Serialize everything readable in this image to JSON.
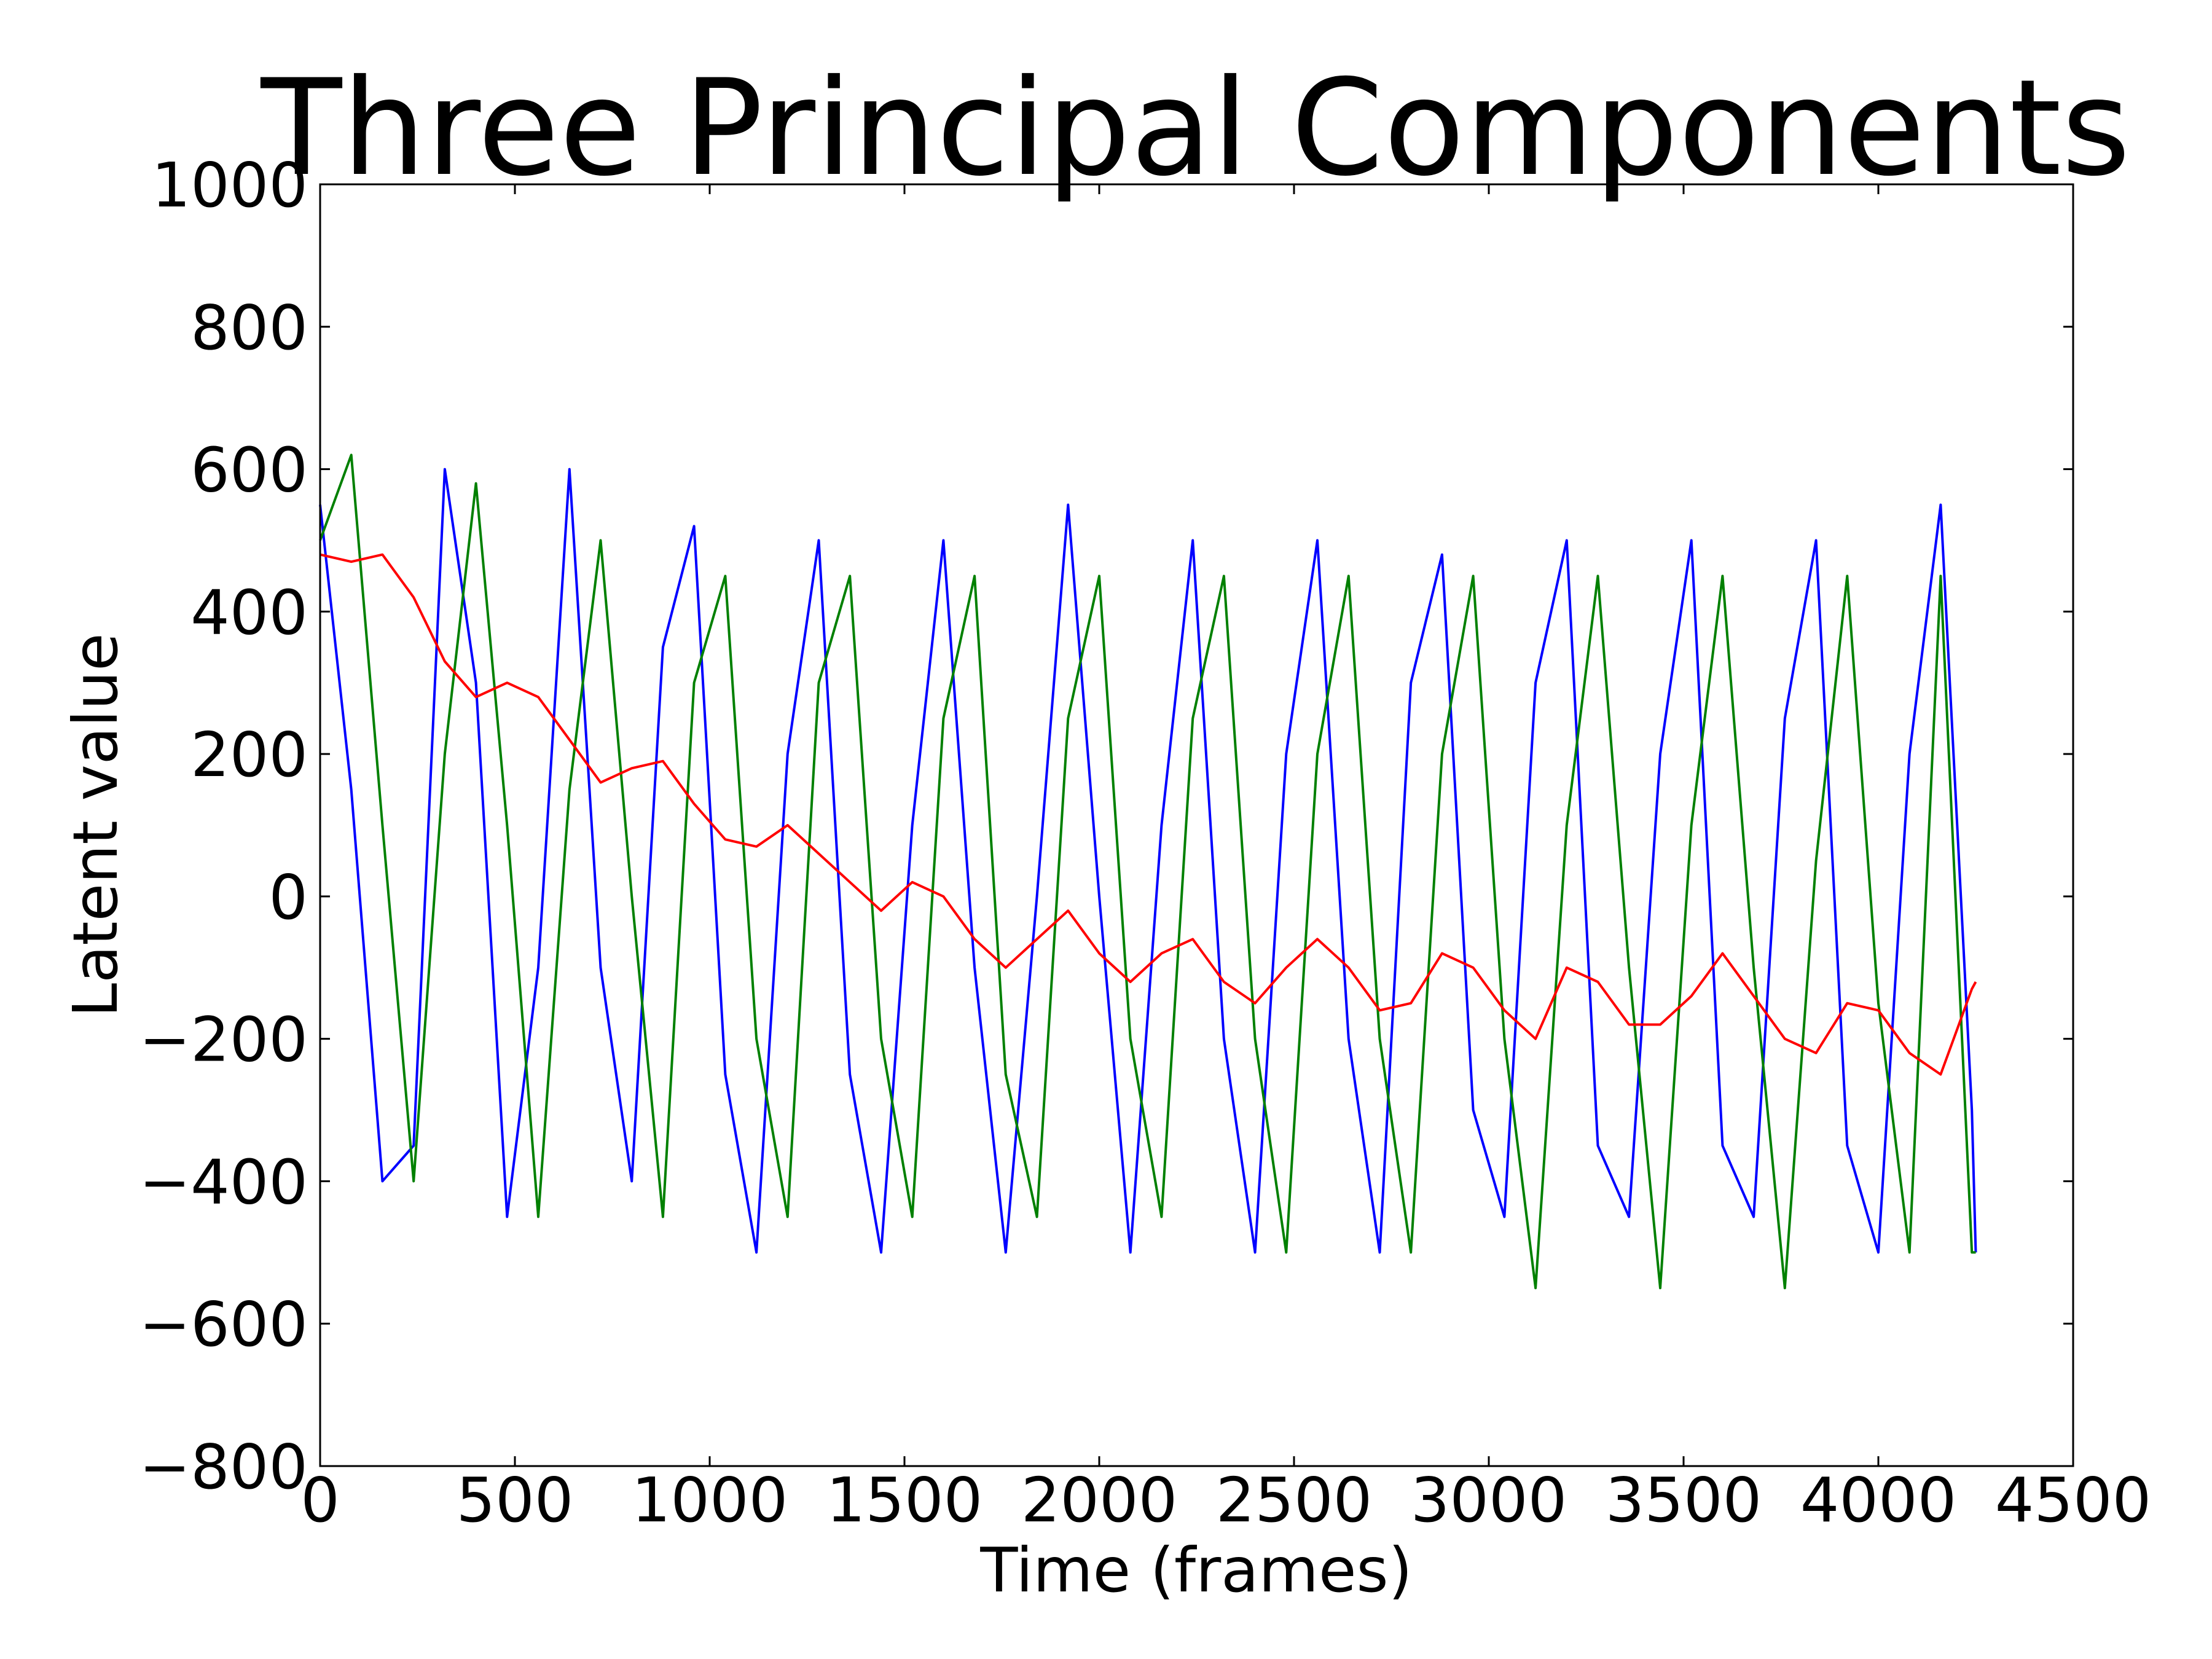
{
  "chart_data": {
    "type": "line",
    "title": "Three Principal Components",
    "xlabel": "Time (frames)",
    "ylabel": "Latent value",
    "xlim": [
      0,
      4500
    ],
    "ylim": [
      -800,
      1000
    ],
    "xticks": [
      0,
      500,
      1000,
      1500,
      2000,
      2500,
      3000,
      3500,
      4000,
      4500
    ],
    "yticks": [
      -800,
      -600,
      -400,
      -200,
      0,
      200,
      400,
      600,
      800,
      1000
    ],
    "xtick_labels": [
      "0",
      "500",
      "1000",
      "1500",
      "2000",
      "2500",
      "3000",
      "3500",
      "4000",
      "4500"
    ],
    "ytick_labels": [
      "−800",
      "−600",
      "−400",
      "−200",
      "0",
      "200",
      "400",
      "600",
      "800",
      "1000"
    ],
    "grid": false,
    "series": [
      {
        "color": "#0000ff",
        "x": [
          0,
          80,
          160,
          240,
          320,
          400,
          480,
          560,
          640,
          720,
          800,
          880,
          960,
          1040,
          1120,
          1200,
          1280,
          1360,
          1440,
          1520,
          1600,
          1680,
          1760,
          1840,
          1920,
          2000,
          2080,
          2160,
          2240,
          2320,
          2400,
          2480,
          2560,
          2640,
          2720,
          2800,
          2880,
          2960,
          3040,
          3120,
          3200,
          3280,
          3360,
          3440,
          3520,
          3600,
          3680,
          3760,
          3840,
          3920,
          4000,
          4080,
          4160,
          4240,
          4250
        ],
        "y": [
          550,
          150,
          -400,
          -350,
          600,
          300,
          -450,
          -100,
          600,
          -100,
          -400,
          350,
          520,
          -250,
          -500,
          200,
          500,
          -250,
          -500,
          100,
          500,
          -100,
          -500,
          0,
          550,
          0,
          -500,
          100,
          500,
          -200,
          -500,
          200,
          500,
          -200,
          -500,
          300,
          480,
          -300,
          -450,
          300,
          500,
          -350,
          -450,
          200,
          500,
          -350,
          -450,
          250,
          500,
          -350,
          -500,
          200,
          550,
          -300,
          -500
        ]
      },
      {
        "color": "#008000",
        "x": [
          0,
          80,
          160,
          240,
          320,
          400,
          480,
          560,
          640,
          720,
          800,
          880,
          960,
          1040,
          1120,
          1200,
          1280,
          1360,
          1440,
          1520,
          1600,
          1680,
          1760,
          1840,
          1920,
          2000,
          2080,
          2160,
          2240,
          2320,
          2400,
          2480,
          2560,
          2640,
          2720,
          2800,
          2880,
          2960,
          3040,
          3120,
          3200,
          3280,
          3360,
          3440,
          3520,
          3600,
          3680,
          3760,
          3840,
          3920,
          4000,
          4080,
          4160,
          4240,
          4250
        ],
        "y": [
          500,
          620,
          100,
          -400,
          200,
          580,
          100,
          -450,
          150,
          500,
          0,
          -450,
          300,
          450,
          -200,
          -450,
          300,
          450,
          -200,
          -450,
          250,
          450,
          -250,
          -450,
          250,
          450,
          -200,
          -450,
          250,
          450,
          -200,
          -500,
          200,
          450,
          -200,
          -500,
          200,
          450,
          -200,
          -550,
          100,
          450,
          -100,
          -550,
          100,
          450,
          -100,
          -550,
          50,
          450,
          -150,
          -500,
          450,
          -500,
          -500
        ]
      },
      {
        "color": "#ff0000",
        "x": [
          0,
          80,
          160,
          240,
          320,
          400,
          480,
          560,
          640,
          720,
          800,
          880,
          960,
          1040,
          1120,
          1200,
          1280,
          1360,
          1440,
          1520,
          1600,
          1680,
          1760,
          1840,
          1920,
          2000,
          2080,
          2160,
          2240,
          2320,
          2400,
          2480,
          2560,
          2640,
          2720,
          2800,
          2880,
          2960,
          3040,
          3120,
          3200,
          3280,
          3360,
          3440,
          3520,
          3600,
          3680,
          3760,
          3840,
          3920,
          4000,
          4080,
          4160,
          4240,
          4250
        ],
        "y": [
          480,
          470,
          480,
          420,
          330,
          280,
          300,
          280,
          220,
          160,
          180,
          190,
          130,
          80,
          70,
          100,
          60,
          20,
          -20,
          20,
          0,
          -60,
          -100,
          -60,
          -20,
          -80,
          -120,
          -80,
          -60,
          -120,
          -150,
          -100,
          -60,
          -100,
          -160,
          -150,
          -80,
          -100,
          -160,
          -200,
          -100,
          -120,
          -180,
          -180,
          -140,
          -80,
          -140,
          -200,
          -220,
          -150,
          -160,
          -220,
          -250,
          -130,
          -120
        ]
      }
    ]
  }
}
